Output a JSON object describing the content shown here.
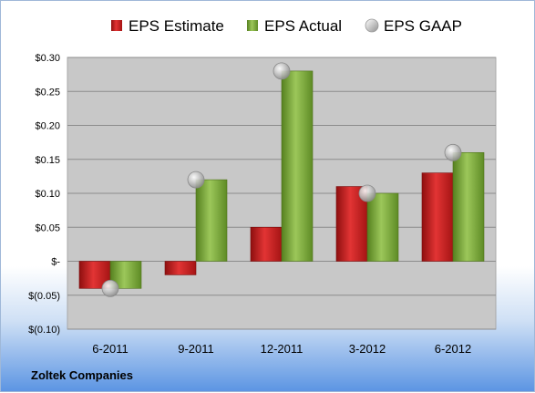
{
  "chart_data": {
    "type": "bar",
    "categories": [
      "6-2011",
      "9-2011",
      "12-2011",
      "3-2012",
      "6-2012"
    ],
    "series": [
      {
        "name": "EPS Estimate",
        "kind": "bar",
        "color": "#cc2222",
        "values": [
          -0.04,
          -0.02,
          0.05,
          0.11,
          0.13
        ]
      },
      {
        "name": "EPS Actual",
        "kind": "bar",
        "color": "#77a33a",
        "values": [
          -0.04,
          0.12,
          0.28,
          0.1,
          0.16
        ]
      },
      {
        "name": "EPS GAAP",
        "kind": "scatter",
        "color": "#b8b8b8",
        "values": [
          -0.04,
          0.12,
          0.28,
          0.1,
          0.16
        ]
      }
    ],
    "ylim": [
      -0.1,
      0.3
    ],
    "yticks": [
      {
        "value": 0.3,
        "label": "$0.30"
      },
      {
        "value": 0.25,
        "label": "$0.25"
      },
      {
        "value": 0.2,
        "label": "$0.20"
      },
      {
        "value": 0.15,
        "label": "$0.15"
      },
      {
        "value": 0.1,
        "label": "$0.10"
      },
      {
        "value": 0.05,
        "label": "$0.05"
      },
      {
        "value": 0.0,
        "label": "$-"
      },
      {
        "value": -0.05,
        "label": "$(0.05)"
      },
      {
        "value": -0.1,
        "label": "$(0.10)"
      }
    ],
    "grid": true,
    "legend": "top"
  },
  "footer": {
    "company": "Zoltek Companies"
  }
}
